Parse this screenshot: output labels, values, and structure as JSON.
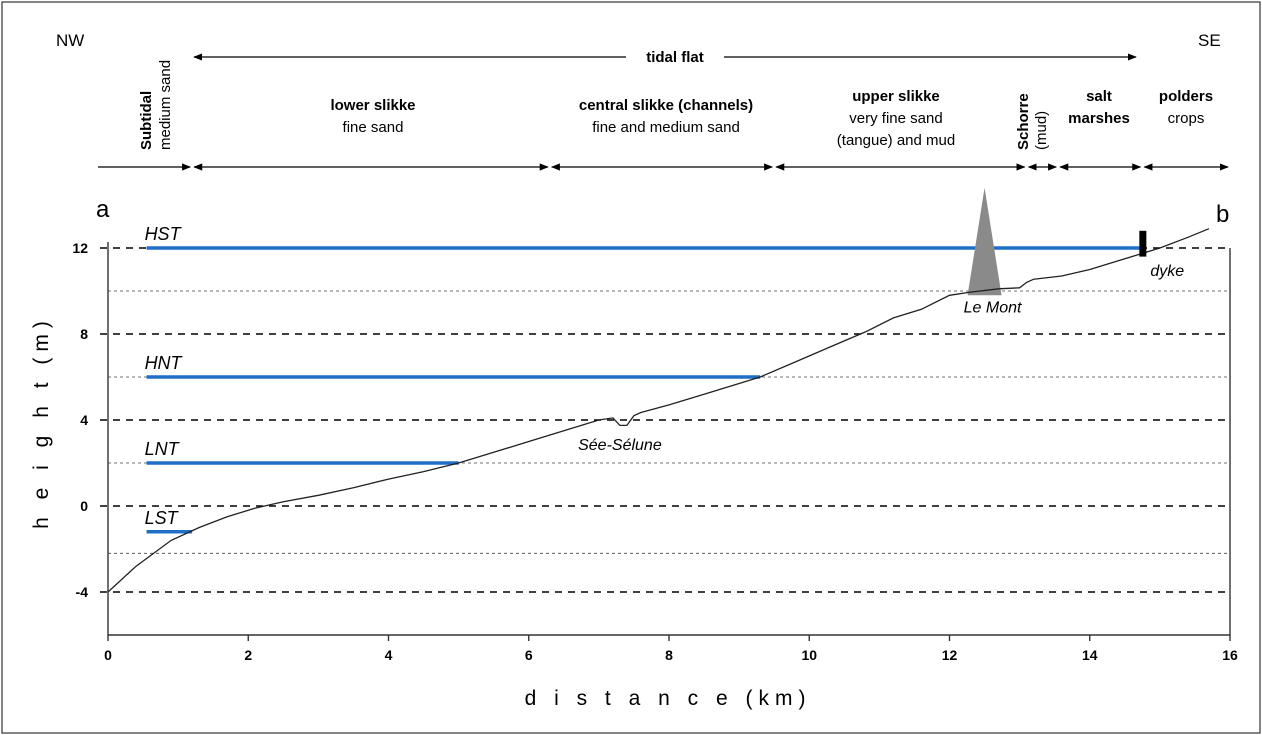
{
  "header": {
    "left_corner": "NW",
    "right_corner": "SE",
    "span_label": "tidal flat",
    "subtidal": {
      "line1": "Subtidal",
      "line2": "medium sand"
    },
    "zones": [
      {
        "title": "lower slikke",
        "desc1": "fine sand",
        "desc2": ""
      },
      {
        "title": "central slikke (channels)",
        "desc1": "fine and medium sand",
        "desc2": ""
      },
      {
        "title": "upper slikke",
        "desc1": "very fine sand",
        "desc2": "(tangue) and mud"
      },
      {
        "title": "salt",
        "desc1": "marshes",
        "desc2": ""
      },
      {
        "title": "polders",
        "desc1": "crops",
        "desc2": ""
      }
    ],
    "schorre": {
      "line1": "Schorre",
      "line2": "(mud)"
    }
  },
  "points": {
    "a": "a",
    "b": "b"
  },
  "colors": {
    "tide_level": "#1f6fc6",
    "profile": "#222222",
    "mont": "#8a8a8a",
    "dyke": "#000000",
    "frame": "#333333"
  },
  "chart_data": {
    "type": "line",
    "title": "",
    "xlabel": "d i s t a n c e (km)",
    "ylabel": "h e i g h t (m)",
    "xlim": [
      0,
      16
    ],
    "ylim": [
      -6,
      12
    ],
    "x_ticks": [
      "0",
      "2",
      "4",
      "6",
      "8",
      "10",
      "12",
      "14",
      "16"
    ],
    "y_ticks": [
      "12",
      "8",
      "4",
      "0",
      "-4"
    ],
    "major_gridlines": [
      12,
      8,
      4,
      0,
      -4
    ],
    "minor_gridlines": [
      10,
      6,
      2,
      -2.2
    ],
    "profile": {
      "x": [
        0,
        0.4,
        0.9,
        1.3,
        1.7,
        2.1,
        2.5,
        3.0,
        3.5,
        4.0,
        4.5,
        5.0,
        5.5,
        6.0,
        6.5,
        7.0,
        7.2,
        7.3,
        7.4,
        7.5,
        7.6,
        8.0,
        8.5,
        9.0,
        9.3,
        9.8,
        10.3,
        10.8,
        11.2,
        11.6,
        12.0,
        12.3,
        12.7,
        13.0,
        13.1,
        13.2,
        13.6,
        14.0,
        14.5,
        15.0,
        15.4,
        15.7
      ],
      "y": [
        -4,
        -2.8,
        -1.6,
        -1.0,
        -0.5,
        -0.1,
        0.2,
        0.5,
        0.85,
        1.25,
        1.6,
        2.0,
        2.5,
        3.0,
        3.5,
        4.0,
        4.1,
        3.75,
        3.75,
        4.2,
        4.35,
        4.7,
        5.2,
        5.7,
        6.0,
        6.7,
        7.4,
        8.1,
        8.75,
        9.15,
        9.8,
        9.95,
        10.1,
        10.15,
        10.4,
        10.55,
        10.7,
        11.0,
        11.5,
        12.0,
        12.5,
        12.9
      ]
    },
    "tide_levels": [
      {
        "name": "HST",
        "y": 12,
        "x_start": 0.55,
        "x_end": 14.8
      },
      {
        "name": "HNT",
        "y": 6,
        "x_start": 0.55,
        "x_end": 9.3
      },
      {
        "name": "LNT",
        "y": 2,
        "x_start": 0.55,
        "x_end": 5.0
      },
      {
        "name": "LST",
        "y": -1.2,
        "x_start": 0.55,
        "x_end": 1.2
      }
    ],
    "features": [
      {
        "name": "Le Mont",
        "x": 12.5
      },
      {
        "name": "Sée-Sélune",
        "x": 7.3
      },
      {
        "name": "dyke",
        "x": 14.75
      }
    ],
    "zone_boundaries_km": [
      1.2,
      6.3,
      9.5,
      13.1,
      13.55,
      14.75
    ]
  }
}
